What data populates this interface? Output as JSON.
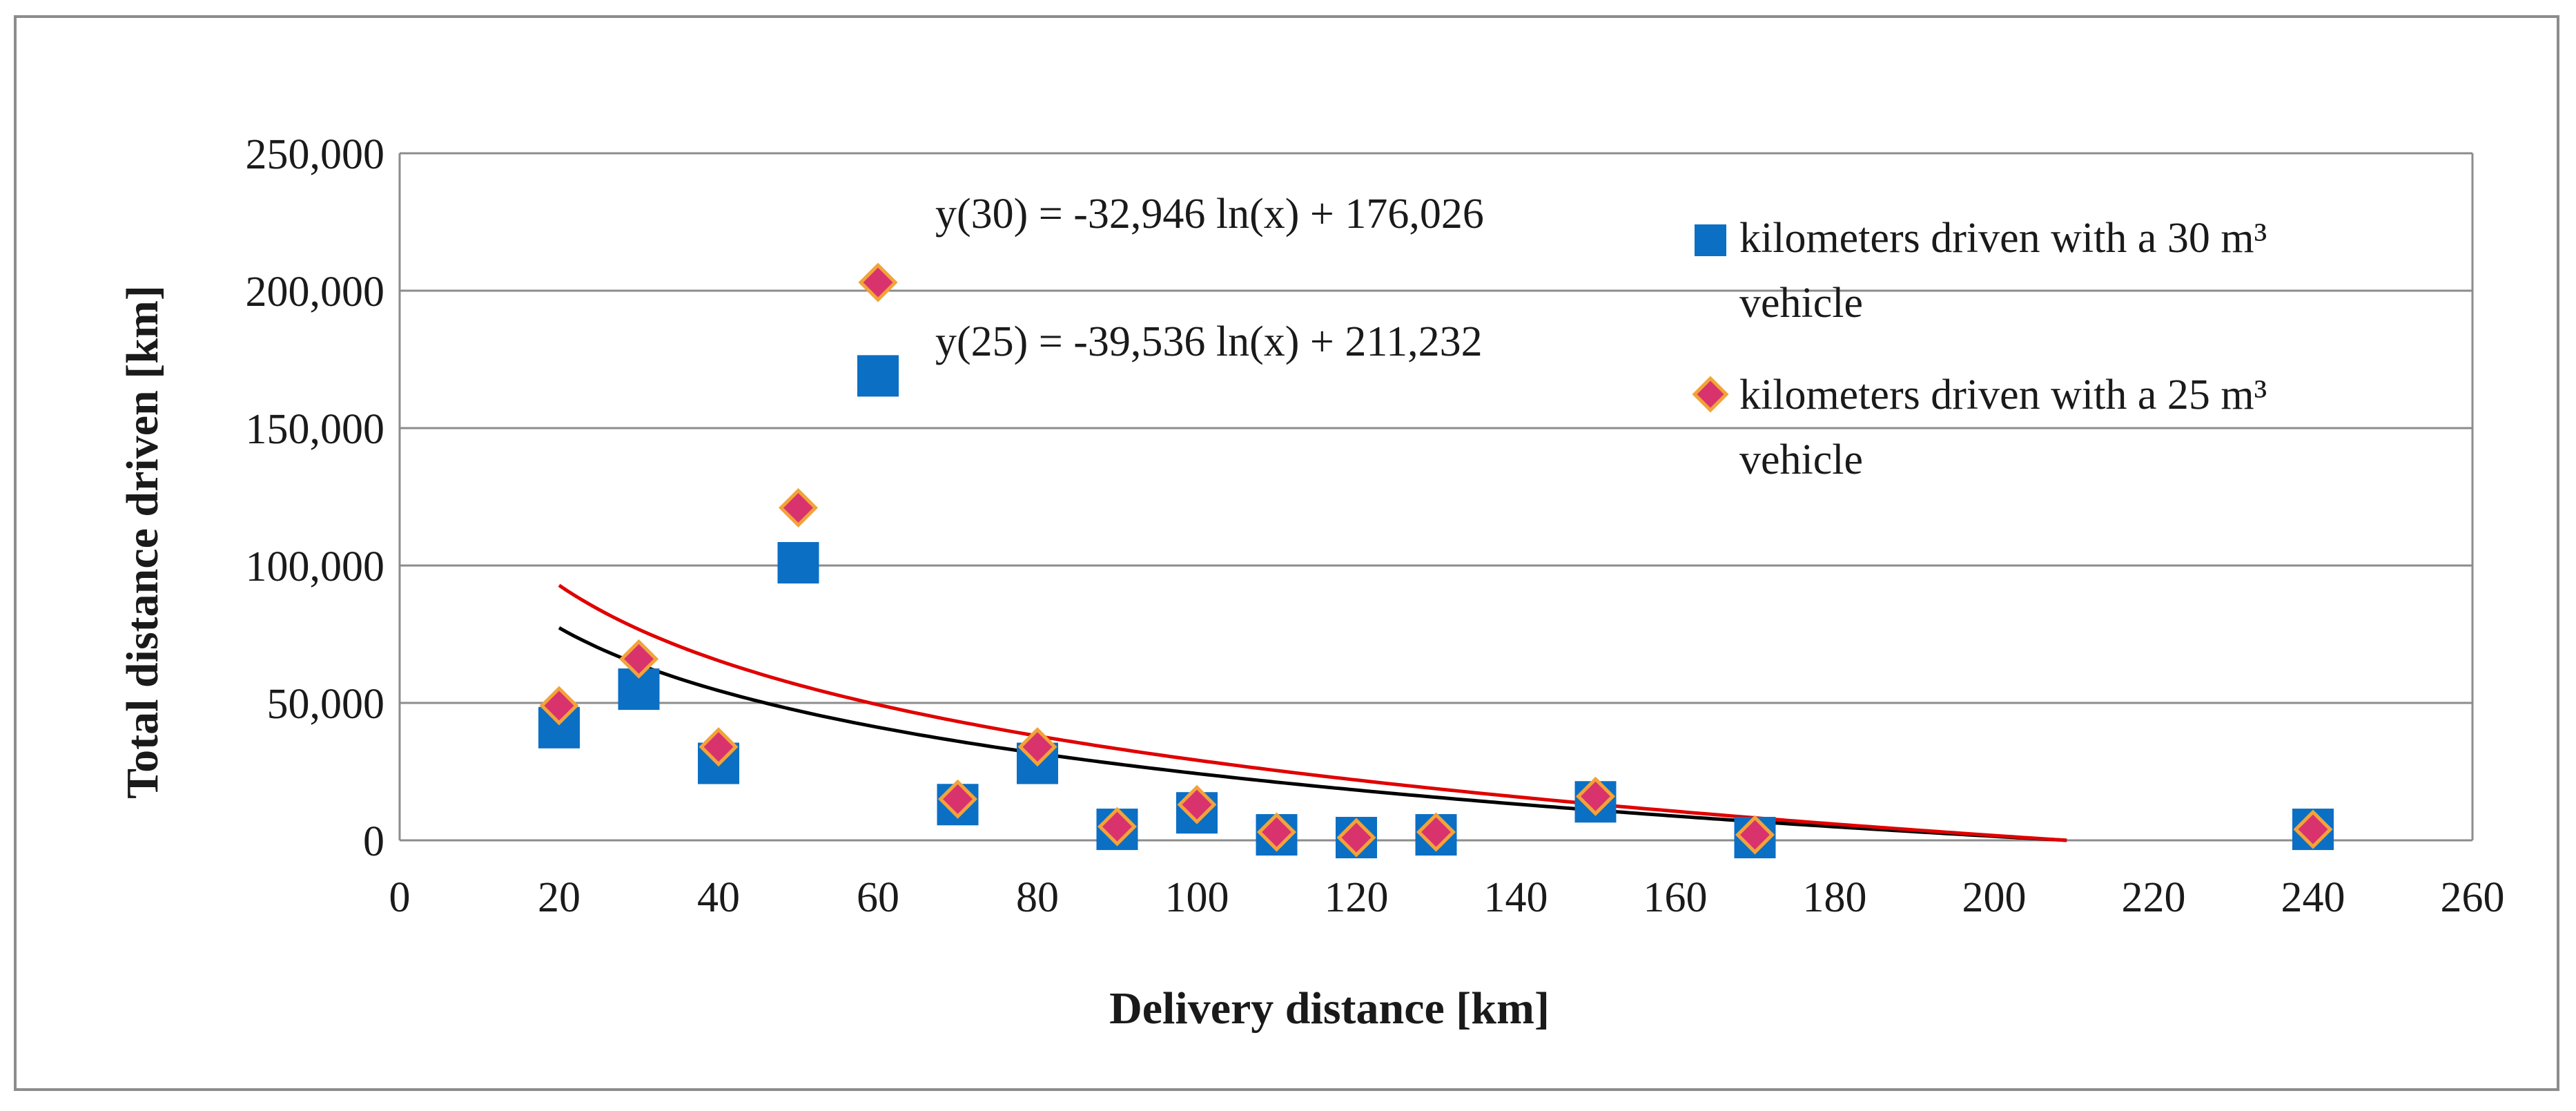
{
  "chart_data": {
    "type": "scatter",
    "title": "",
    "xlabel": "Delivery distance [km]",
    "ylabel": "Total distance driven [km]",
    "xlim": [
      0,
      260
    ],
    "ylim": [
      0,
      250000
    ],
    "x_ticks": [
      "0",
      "20",
      "40",
      "60",
      "80",
      "100",
      "120",
      "140",
      "160",
      "180",
      "200",
      "220",
      "240",
      "260"
    ],
    "y_ticks": [
      "0",
      "50,000",
      "100,000",
      "150,000",
      "200,000",
      "250,000"
    ],
    "grid": "horizontal",
    "legend_position": "right",
    "series": [
      {
        "name": "kilometers driven with a 30 m³ vehicle",
        "marker": "square",
        "color": "#0b6fc4",
        "points": [
          {
            "x": 20,
            "y": 41000
          },
          {
            "x": 30,
            "y": 55000
          },
          {
            "x": 40,
            "y": 28000
          },
          {
            "x": 50,
            "y": 101000
          },
          {
            "x": 60,
            "y": 169000
          },
          {
            "x": 70,
            "y": 13000
          },
          {
            "x": 80,
            "y": 28000
          },
          {
            "x": 90,
            "y": 4000
          },
          {
            "x": 100,
            "y": 10000
          },
          {
            "x": 110,
            "y": 2000
          },
          {
            "x": 120,
            "y": 1000
          },
          {
            "x": 130,
            "y": 2000
          },
          {
            "x": 150,
            "y": 14000
          },
          {
            "x": 170,
            "y": 1000
          },
          {
            "x": 240,
            "y": 4000
          }
        ]
      },
      {
        "name": "kilometers driven with a 25 m³ vehicle",
        "marker": "diamond",
        "color": "#d9336e",
        "edge_color": "#f2a33a",
        "points": [
          {
            "x": 20,
            "y": 49000
          },
          {
            "x": 30,
            "y": 66000
          },
          {
            "x": 40,
            "y": 34000
          },
          {
            "x": 50,
            "y": 121000
          },
          {
            "x": 60,
            "y": 203000
          },
          {
            "x": 70,
            "y": 15000
          },
          {
            "x": 80,
            "y": 34000
          },
          {
            "x": 90,
            "y": 5000
          },
          {
            "x": 100,
            "y": 13000
          },
          {
            "x": 110,
            "y": 3000
          },
          {
            "x": 120,
            "y": 1000
          },
          {
            "x": 130,
            "y": 3000
          },
          {
            "x": 150,
            "y": 16000
          },
          {
            "x": 170,
            "y": 2000
          },
          {
            "x": 240,
            "y": 4000
          }
        ]
      }
    ],
    "trendlines": [
      {
        "label": "y(30) = -32,946 ln(x) + 176,026",
        "a": -32946,
        "b": 176026,
        "color": "#000000",
        "x_start": 20
      },
      {
        "label": "y(25) = -39,536 ln(x) + 211,232",
        "a": -39536,
        "b": 211232,
        "color": "#e00000",
        "x_start": 20
      }
    ]
  }
}
